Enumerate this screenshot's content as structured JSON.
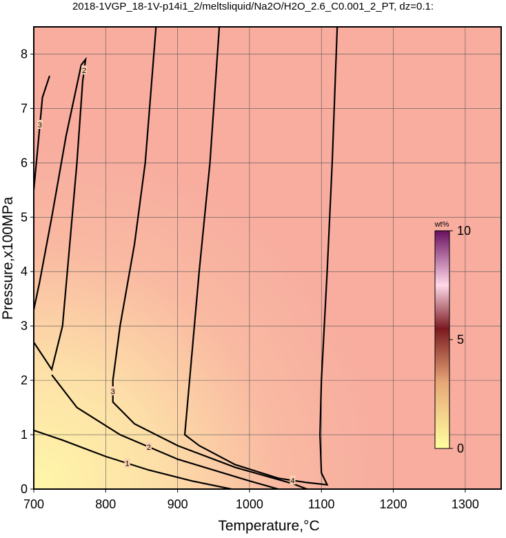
{
  "chart_data": {
    "type": "contour",
    "title": "2018-1VGP_18-1V-p14i1_2/meltsliquid/Na2O/H2O_2.6_C0.001_2_PT, dz=0.1:",
    "x_label": "Temperature,°C",
    "y_label": "Pressure,x100MPa",
    "xlim": [
      700,
      1350
    ],
    "ylim": [
      0,
      8.5
    ],
    "xticks": [
      700,
      800,
      900,
      1000,
      1100,
      1200,
      1300
    ],
    "yticks": [
      0,
      1,
      2,
      3,
      4,
      5,
      6,
      7,
      8
    ],
    "grid": true,
    "colorbar": {
      "label": "wt%",
      "lim": [
        0,
        10
      ],
      "ticks": [
        0,
        5,
        10
      ]
    },
    "contours": [
      {
        "level": 1,
        "x": [
          700,
          740,
          800,
          860,
          920,
          975
        ],
        "y": [
          1.08,
          0.9,
          0.6,
          0.35,
          0.15,
          0
        ]
      },
      {
        "level": 2,
        "x": [
          700,
          725,
          740,
          750,
          760,
          768,
          772,
          766,
          745,
          725,
          708,
          700
        ],
        "y": [
          2.7,
          2.2,
          3.0,
          4.5,
          6.0,
          7.5,
          7.9,
          7.8,
          6.5,
          5.0,
          3.8,
          3.3
        ]
      },
      {
        "level": 2,
        "x": [
          725,
          760,
          820,
          900,
          1000,
          1040
        ],
        "y": [
          2.1,
          1.5,
          1.0,
          0.55,
          0.15,
          0
        ]
      },
      {
        "level": 3,
        "x": [
          870,
          855,
          840,
          820,
          810,
          810,
          840,
          900,
          980,
          1060,
          1080
        ],
        "y": [
          8.5,
          6.0,
          4.5,
          3.0,
          2.0,
          1.6,
          1.2,
          0.8,
          0.4,
          0.1,
          0
        ]
      },
      {
        "level": 3,
        "x": [
          700,
          705,
          712,
          722
        ],
        "y": [
          5.5,
          6.2,
          7.2,
          7.6
        ]
      },
      {
        "level": 4,
        "x": [
          958,
          945,
          930,
          920,
          910,
          930,
          980,
          1040,
          1080,
          1108,
          1100,
          1098,
          1100,
          1108,
          1115,
          1122
        ],
        "y": [
          8.5,
          6.0,
          4.0,
          2.5,
          1.0,
          0.8,
          0.45,
          0.2,
          0.12,
          0.08,
          0.3,
          1.0,
          2.0,
          4.0,
          6.0,
          8.5
        ]
      }
    ]
  }
}
